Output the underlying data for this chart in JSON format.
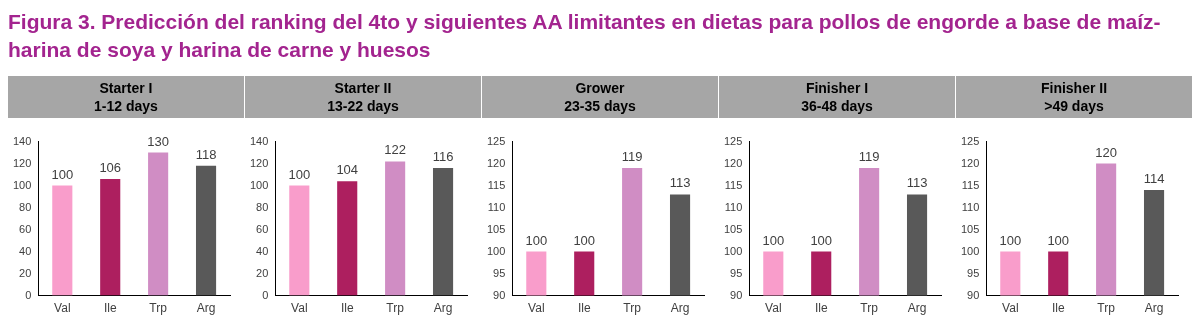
{
  "chart_data": [
    {
      "type": "other",
      "title": "Figura 3. Predicción del ranking del 4to y siguientes AA limitantes en dietas para pollos de engorde a base de maíz-harina de soya y harina de carne y huesos"
    },
    {
      "type": "bar",
      "title": "Starter I",
      "subtitle": "1-12 days",
      "categories": [
        "Val",
        "Ile",
        "Trp",
        "Arg"
      ],
      "values": [
        100,
        106,
        130,
        118
      ],
      "colors": [
        "#f99dcb",
        "#ad1f5f",
        "#d08dc4",
        "#595959"
      ],
      "ylim": [
        0,
        140
      ],
      "yticks": [
        0,
        20,
        40,
        60,
        80,
        100,
        120,
        140
      ],
      "data_labels": true,
      "grid": false,
      "legend": false
    },
    {
      "type": "bar",
      "title": "Starter II",
      "subtitle": "13-22 days",
      "categories": [
        "Val",
        "Ile",
        "Trp",
        "Arg"
      ],
      "values": [
        100,
        104,
        122,
        116
      ],
      "colors": [
        "#f99dcb",
        "#ad1f5f",
        "#d08dc4",
        "#595959"
      ],
      "ylim": [
        0,
        140
      ],
      "yticks": [
        0,
        20,
        40,
        60,
        80,
        100,
        120,
        140
      ],
      "data_labels": true,
      "grid": false,
      "legend": false
    },
    {
      "type": "bar",
      "title": "Grower",
      "subtitle": "23-35 days",
      "categories": [
        "Val",
        "Ile",
        "Trp",
        "Arg"
      ],
      "values": [
        100,
        100,
        119,
        113
      ],
      "colors": [
        "#f99dcb",
        "#ad1f5f",
        "#d08dc4",
        "#595959"
      ],
      "ylim": [
        90,
        125
      ],
      "yticks": [
        90,
        95,
        100,
        105,
        110,
        115,
        120,
        125
      ],
      "data_labels": true,
      "grid": false,
      "legend": false
    },
    {
      "type": "bar",
      "title": "Finisher I",
      "subtitle": "36-48 days",
      "categories": [
        "Val",
        "Ile",
        "Trp",
        "Arg"
      ],
      "values": [
        100,
        100,
        119,
        113
      ],
      "colors": [
        "#f99dcb",
        "#ad1f5f",
        "#d08dc4",
        "#595959"
      ],
      "ylim": [
        90,
        125
      ],
      "yticks": [
        90,
        95,
        100,
        105,
        110,
        115,
        120,
        125
      ],
      "data_labels": true,
      "grid": false,
      "legend": false
    },
    {
      "type": "bar",
      "title": "Finisher II",
      "subtitle": ">49 days",
      "categories": [
        "Val",
        "Ile",
        "Trp",
        "Arg"
      ],
      "values": [
        100,
        100,
        120,
        114
      ],
      "colors": [
        "#f99dcb",
        "#ad1f5f",
        "#d08dc4",
        "#595959"
      ],
      "ylim": [
        90,
        125
      ],
      "yticks": [
        90,
        95,
        100,
        105,
        110,
        115,
        120,
        125
      ],
      "data_labels": true,
      "grid": false,
      "legend": false
    }
  ]
}
